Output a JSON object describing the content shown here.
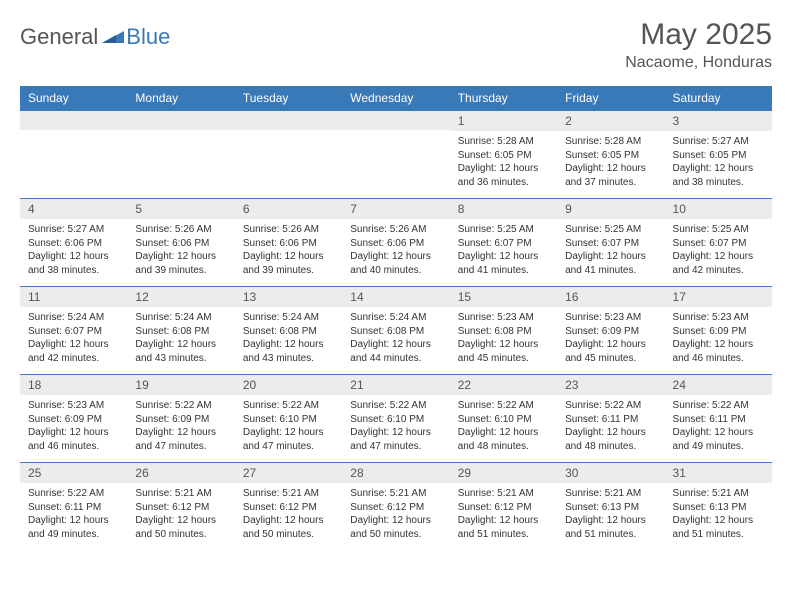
{
  "brand": {
    "general": "General",
    "blue": "Blue"
  },
  "title": "May 2025",
  "location": "Nacaome, Honduras",
  "colors": {
    "header_bg": "#3a79b7",
    "header_text": "#ffffff",
    "daynum_bg": "#ececec",
    "border": "#3a79b7",
    "body_text": "#333333",
    "title_text": "#555555"
  },
  "weekdays": [
    "Sunday",
    "Monday",
    "Tuesday",
    "Wednesday",
    "Thursday",
    "Friday",
    "Saturday"
  ],
  "weeks": [
    [
      {
        "empty": true
      },
      {
        "empty": true
      },
      {
        "empty": true
      },
      {
        "empty": true
      },
      {
        "day": 1,
        "sunrise": "Sunrise: 5:28 AM",
        "sunset": "Sunset: 6:05 PM",
        "daylight": "Daylight: 12 hours and 36 minutes."
      },
      {
        "day": 2,
        "sunrise": "Sunrise: 5:28 AM",
        "sunset": "Sunset: 6:05 PM",
        "daylight": "Daylight: 12 hours and 37 minutes."
      },
      {
        "day": 3,
        "sunrise": "Sunrise: 5:27 AM",
        "sunset": "Sunset: 6:05 PM",
        "daylight": "Daylight: 12 hours and 38 minutes."
      }
    ],
    [
      {
        "day": 4,
        "sunrise": "Sunrise: 5:27 AM",
        "sunset": "Sunset: 6:06 PM",
        "daylight": "Daylight: 12 hours and 38 minutes."
      },
      {
        "day": 5,
        "sunrise": "Sunrise: 5:26 AM",
        "sunset": "Sunset: 6:06 PM",
        "daylight": "Daylight: 12 hours and 39 minutes."
      },
      {
        "day": 6,
        "sunrise": "Sunrise: 5:26 AM",
        "sunset": "Sunset: 6:06 PM",
        "daylight": "Daylight: 12 hours and 39 minutes."
      },
      {
        "day": 7,
        "sunrise": "Sunrise: 5:26 AM",
        "sunset": "Sunset: 6:06 PM",
        "daylight": "Daylight: 12 hours and 40 minutes."
      },
      {
        "day": 8,
        "sunrise": "Sunrise: 5:25 AM",
        "sunset": "Sunset: 6:07 PM",
        "daylight": "Daylight: 12 hours and 41 minutes."
      },
      {
        "day": 9,
        "sunrise": "Sunrise: 5:25 AM",
        "sunset": "Sunset: 6:07 PM",
        "daylight": "Daylight: 12 hours and 41 minutes."
      },
      {
        "day": 10,
        "sunrise": "Sunrise: 5:25 AM",
        "sunset": "Sunset: 6:07 PM",
        "daylight": "Daylight: 12 hours and 42 minutes."
      }
    ],
    [
      {
        "day": 11,
        "sunrise": "Sunrise: 5:24 AM",
        "sunset": "Sunset: 6:07 PM",
        "daylight": "Daylight: 12 hours and 42 minutes."
      },
      {
        "day": 12,
        "sunrise": "Sunrise: 5:24 AM",
        "sunset": "Sunset: 6:08 PM",
        "daylight": "Daylight: 12 hours and 43 minutes."
      },
      {
        "day": 13,
        "sunrise": "Sunrise: 5:24 AM",
        "sunset": "Sunset: 6:08 PM",
        "daylight": "Daylight: 12 hours and 43 minutes."
      },
      {
        "day": 14,
        "sunrise": "Sunrise: 5:24 AM",
        "sunset": "Sunset: 6:08 PM",
        "daylight": "Daylight: 12 hours and 44 minutes."
      },
      {
        "day": 15,
        "sunrise": "Sunrise: 5:23 AM",
        "sunset": "Sunset: 6:08 PM",
        "daylight": "Daylight: 12 hours and 45 minutes."
      },
      {
        "day": 16,
        "sunrise": "Sunrise: 5:23 AM",
        "sunset": "Sunset: 6:09 PM",
        "daylight": "Daylight: 12 hours and 45 minutes."
      },
      {
        "day": 17,
        "sunrise": "Sunrise: 5:23 AM",
        "sunset": "Sunset: 6:09 PM",
        "daylight": "Daylight: 12 hours and 46 minutes."
      }
    ],
    [
      {
        "day": 18,
        "sunrise": "Sunrise: 5:23 AM",
        "sunset": "Sunset: 6:09 PM",
        "daylight": "Daylight: 12 hours and 46 minutes."
      },
      {
        "day": 19,
        "sunrise": "Sunrise: 5:22 AM",
        "sunset": "Sunset: 6:09 PM",
        "daylight": "Daylight: 12 hours and 47 minutes."
      },
      {
        "day": 20,
        "sunrise": "Sunrise: 5:22 AM",
        "sunset": "Sunset: 6:10 PM",
        "daylight": "Daylight: 12 hours and 47 minutes."
      },
      {
        "day": 21,
        "sunrise": "Sunrise: 5:22 AM",
        "sunset": "Sunset: 6:10 PM",
        "daylight": "Daylight: 12 hours and 47 minutes."
      },
      {
        "day": 22,
        "sunrise": "Sunrise: 5:22 AM",
        "sunset": "Sunset: 6:10 PM",
        "daylight": "Daylight: 12 hours and 48 minutes."
      },
      {
        "day": 23,
        "sunrise": "Sunrise: 5:22 AM",
        "sunset": "Sunset: 6:11 PM",
        "daylight": "Daylight: 12 hours and 48 minutes."
      },
      {
        "day": 24,
        "sunrise": "Sunrise: 5:22 AM",
        "sunset": "Sunset: 6:11 PM",
        "daylight": "Daylight: 12 hours and 49 minutes."
      }
    ],
    [
      {
        "day": 25,
        "sunrise": "Sunrise: 5:22 AM",
        "sunset": "Sunset: 6:11 PM",
        "daylight": "Daylight: 12 hours and 49 minutes."
      },
      {
        "day": 26,
        "sunrise": "Sunrise: 5:21 AM",
        "sunset": "Sunset: 6:12 PM",
        "daylight": "Daylight: 12 hours and 50 minutes."
      },
      {
        "day": 27,
        "sunrise": "Sunrise: 5:21 AM",
        "sunset": "Sunset: 6:12 PM",
        "daylight": "Daylight: 12 hours and 50 minutes."
      },
      {
        "day": 28,
        "sunrise": "Sunrise: 5:21 AM",
        "sunset": "Sunset: 6:12 PM",
        "daylight": "Daylight: 12 hours and 50 minutes."
      },
      {
        "day": 29,
        "sunrise": "Sunrise: 5:21 AM",
        "sunset": "Sunset: 6:12 PM",
        "daylight": "Daylight: 12 hours and 51 minutes."
      },
      {
        "day": 30,
        "sunrise": "Sunrise: 5:21 AM",
        "sunset": "Sunset: 6:13 PM",
        "daylight": "Daylight: 12 hours and 51 minutes."
      },
      {
        "day": 31,
        "sunrise": "Sunrise: 5:21 AM",
        "sunset": "Sunset: 6:13 PM",
        "daylight": "Daylight: 12 hours and 51 minutes."
      }
    ]
  ]
}
